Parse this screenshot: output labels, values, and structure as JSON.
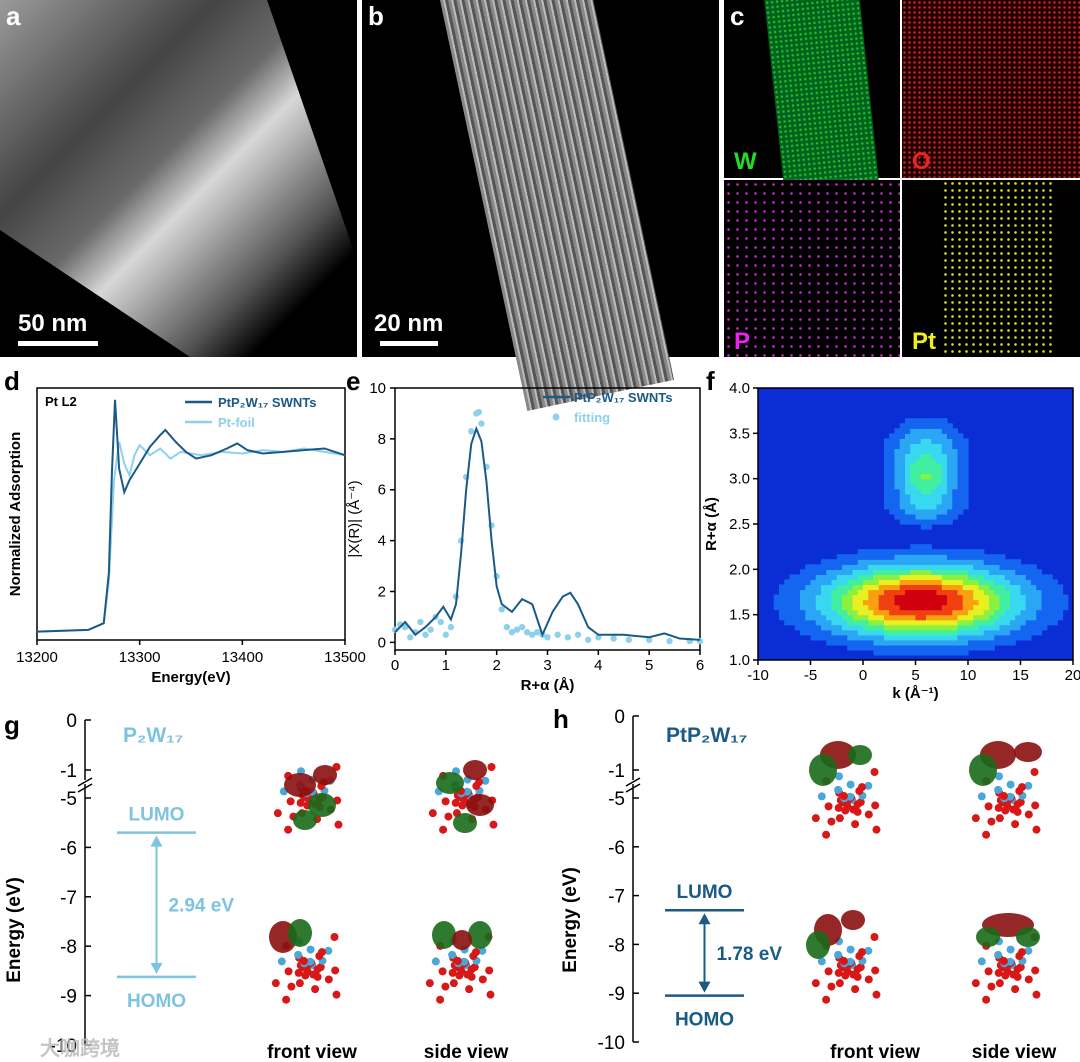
{
  "panels": {
    "a": {
      "label": "a",
      "scale": "50 nm"
    },
    "b": {
      "label": "b",
      "scale": "20 nm"
    },
    "c": {
      "label": "c",
      "elements": [
        "W",
        "O",
        "P",
        "Pt"
      ],
      "colors": {
        "W": "#22dd22",
        "O": "#ee2222",
        "P": "#ee22ee",
        "Pt": "#eeee22"
      }
    }
  },
  "panel_d": {
    "label": "d"
  },
  "panel_e": {
    "label": "e"
  },
  "panel_f": {
    "label": "f"
  },
  "panel_g": {
    "label": "g",
    "title": "P₂W₁₇",
    "ylabel": "Energy (eV)",
    "yticks": [
      "0",
      "-1",
      "-5",
      "-6",
      "-7",
      "-8",
      "-9",
      "-10"
    ],
    "lumo": "LUMO",
    "homo": "HOMO",
    "gap": "2.94 eV",
    "views": [
      "front view",
      "side view"
    ],
    "color": "#7ec3e0"
  },
  "panel_h": {
    "label": "h",
    "title": "PtP₂W₁₇",
    "ylabel": "Energy (eV)",
    "yticks": [
      "0",
      "-1",
      "-5",
      "-6",
      "-7",
      "-8",
      "-9",
      "-10"
    ],
    "lumo": "LUMO",
    "homo": "HOMO",
    "gap": "1.78 eV",
    "views": [
      "front view",
      "side view"
    ],
    "color": "#1b5a86"
  },
  "watermark": "大咖跨境",
  "chart_data": [
    {
      "id": "d",
      "type": "line",
      "title": "",
      "annotation": "Pt L2",
      "xlabel": "Energy(eV)",
      "ylabel": "Normalized Adsorption",
      "xlim": [
        13200,
        13500
      ],
      "ylim": [
        0,
        1.5
      ],
      "xticks": [
        13200,
        13300,
        13400,
        13500
      ],
      "legend_position": "top-right",
      "series": [
        {
          "name": "PtP₂W₁₇ SWNTs",
          "color": "#1b5a86",
          "x": [
            13200,
            13250,
            13265,
            13270,
            13273,
            13276,
            13280,
            13285,
            13290,
            13300,
            13310,
            13320,
            13325,
            13335,
            13345,
            13355,
            13370,
            13385,
            13395,
            13405,
            13420,
            13440,
            13460,
            13480,
            13500
          ],
          "y": [
            0.05,
            0.06,
            0.1,
            0.4,
            1.0,
            1.43,
            1.02,
            0.88,
            0.95,
            1.05,
            1.15,
            1.22,
            1.25,
            1.18,
            1.12,
            1.08,
            1.1,
            1.14,
            1.17,
            1.13,
            1.11,
            1.12,
            1.13,
            1.14,
            1.1
          ]
        },
        {
          "name": "Pt-foil",
          "color": "#8fd0ec",
          "x": [
            13200,
            13250,
            13265,
            13270,
            13275,
            13280,
            13285,
            13290,
            13295,
            13300,
            13310,
            13320,
            13330,
            13340,
            13360,
            13380,
            13400,
            13420,
            13440,
            13460,
            13480,
            13500
          ],
          "y": [
            0.05,
            0.06,
            0.1,
            0.35,
            0.95,
            1.18,
            1.05,
            0.98,
            1.1,
            1.16,
            1.1,
            1.14,
            1.08,
            1.12,
            1.1,
            1.12,
            1.11,
            1.13,
            1.12,
            1.14,
            1.12,
            1.1
          ]
        }
      ]
    },
    {
      "id": "e",
      "type": "line",
      "xlabel": "R+α (Å)",
      "ylabel": "|X(R)| (Å⁻⁴)",
      "xlim": [
        0,
        6
      ],
      "ylim": [
        -0.3,
        10
      ],
      "xticks": [
        0,
        1,
        2,
        3,
        4,
        5,
        6
      ],
      "yticks": [
        0,
        2,
        4,
        6,
        8,
        10
      ],
      "legend_position": "top-right",
      "series": [
        {
          "name": "PtP₂W₁₇ SWNTs",
          "color": "#1b5a86",
          "style": "line",
          "x": [
            0,
            0.2,
            0.4,
            0.6,
            0.8,
            0.95,
            1.1,
            1.2,
            1.3,
            1.4,
            1.5,
            1.6,
            1.7,
            1.8,
            1.9,
            2.0,
            2.1,
            2.3,
            2.5,
            2.7,
            2.9,
            3.1,
            3.3,
            3.45,
            3.6,
            3.8,
            4.0,
            4.5,
            5.0,
            5.3,
            5.6,
            6.0
          ],
          "y": [
            0.4,
            0.8,
            0.3,
            0.6,
            1.0,
            1.4,
            0.9,
            1.5,
            3.5,
            6.0,
            7.8,
            8.4,
            7.9,
            6.3,
            4.0,
            2.2,
            1.5,
            1.2,
            1.7,
            1.5,
            0.3,
            1.2,
            1.8,
            1.95,
            1.5,
            0.6,
            0.3,
            0.3,
            0.2,
            0.35,
            0.15,
            0.1
          ]
        },
        {
          "name": "fitting",
          "color": "#8fd0ec",
          "style": "scatter",
          "x": [
            0,
            0.1,
            0.2,
            0.3,
            0.4,
            0.5,
            0.6,
            0.7,
            0.8,
            0.9,
            1.0,
            1.1,
            1.2,
            1.3,
            1.4,
            1.5,
            1.6,
            1.65,
            1.7,
            1.8,
            1.9,
            2.0,
            2.1,
            2.2,
            2.3,
            2.4,
            2.5,
            2.6,
            2.7,
            2.8,
            2.9,
            3.0,
            3.2,
            3.4,
            3.6,
            3.8,
            4.0,
            4.3,
            4.6,
            5.0,
            5.4,
            5.8,
            6.0
          ],
          "y": [
            0.5,
            0.7,
            0.6,
            0.2,
            0.4,
            0.8,
            0.3,
            0.5,
            1.0,
            0.8,
            0.3,
            0.6,
            1.8,
            4.0,
            6.5,
            8.3,
            9.0,
            9.05,
            8.6,
            6.9,
            4.6,
            2.6,
            1.3,
            0.6,
            0.4,
            0.5,
            0.6,
            0.4,
            0.3,
            0.4,
            0.3,
            0.2,
            0.3,
            0.2,
            0.3,
            0.1,
            0.2,
            0.15,
            0.1,
            0.1,
            0.05,
            0.05,
            0.05
          ]
        }
      ]
    },
    {
      "id": "f",
      "type": "heatmap",
      "xlabel": "k (Å⁻¹)",
      "ylabel": "R+α (Å)",
      "xlim": [
        -10,
        20
      ],
      "ylim": [
        1.0,
        4.0
      ],
      "xticks": [
        -10,
        -5,
        0,
        5,
        10,
        15,
        20
      ],
      "yticks": [
        1.0,
        1.5,
        2.0,
        2.5,
        3.0,
        3.5,
        4.0
      ],
      "peaks": [
        {
          "k": 5.5,
          "r": 1.65,
          "intensity": 1.0,
          "sk": 6.5,
          "sr": 0.28
        },
        {
          "k": 6.0,
          "r": 3.3,
          "intensity": 0.35,
          "sk": 2.5,
          "sr": 0.25
        },
        {
          "k": 6.0,
          "r": 2.7,
          "intensity": 0.28,
          "sk": 2.5,
          "sr": 0.15
        },
        {
          "k": 6.0,
          "r": 3.0,
          "intensity": 0.3,
          "sk": 2.0,
          "sr": 0.15
        }
      ]
    }
  ]
}
